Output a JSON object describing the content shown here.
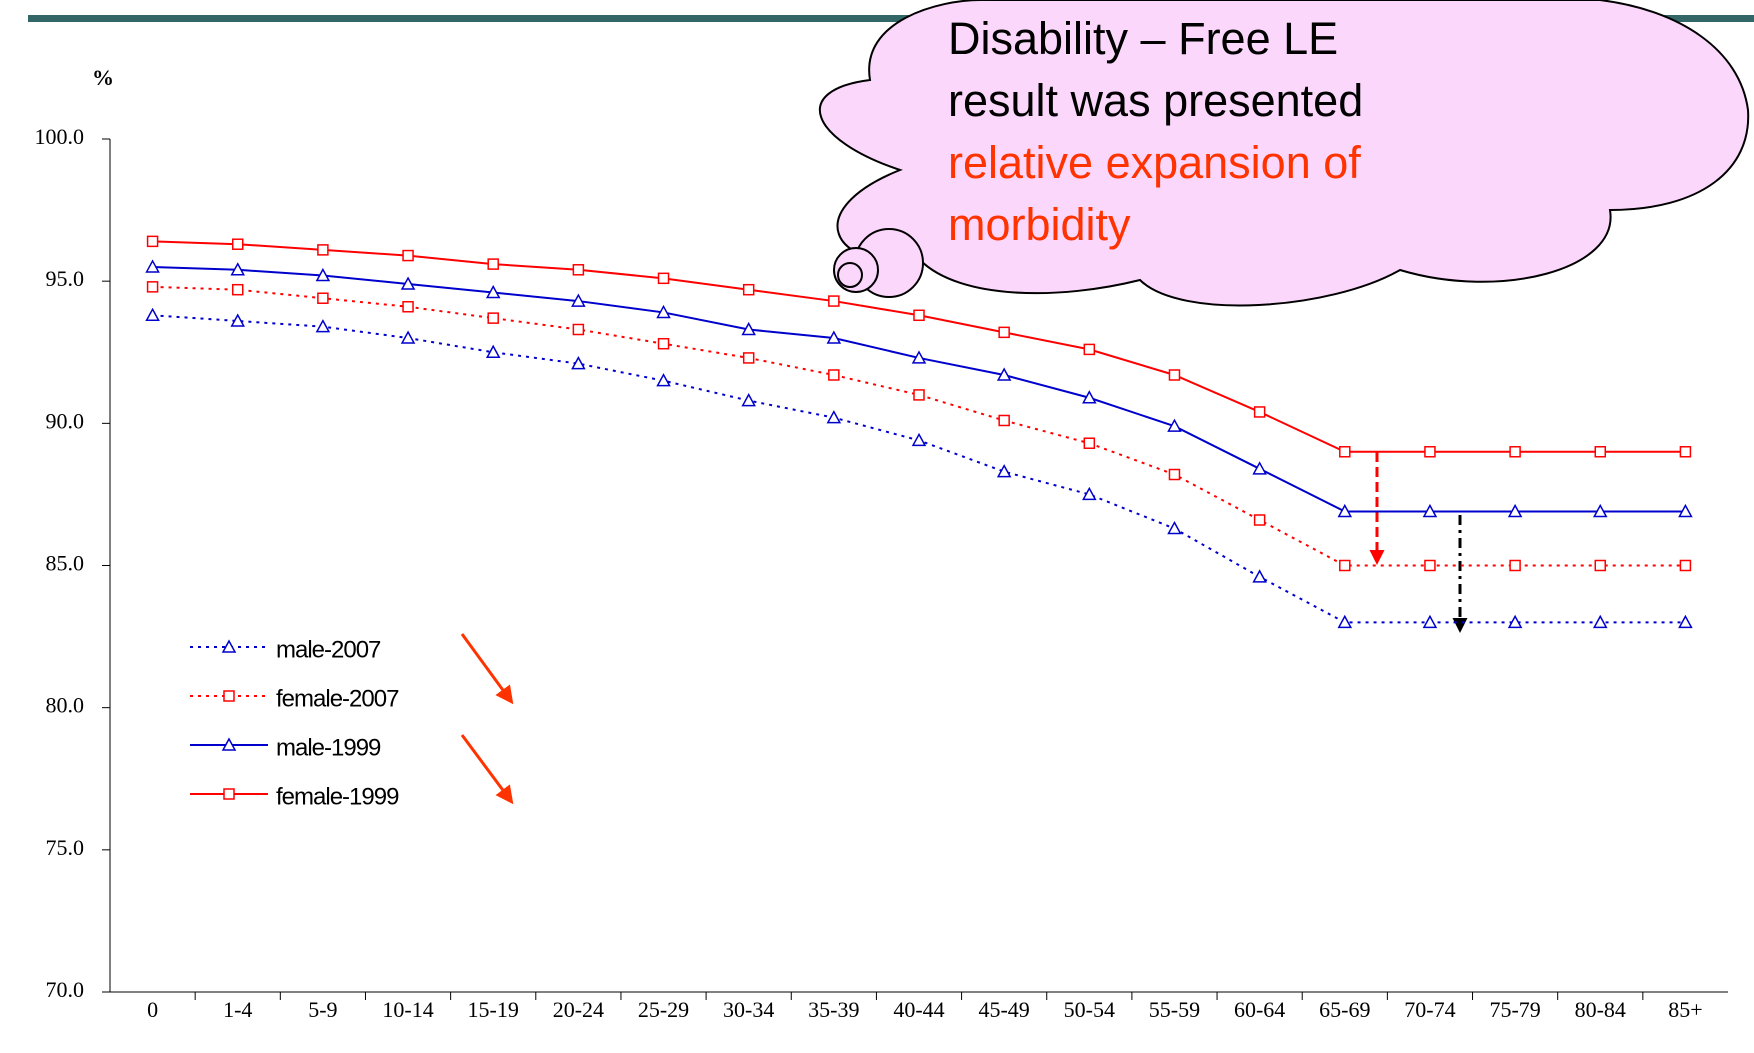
{
  "chart_data": {
    "type": "line",
    "ylabel": "%",
    "categories": [
      "0",
      "1-4",
      "5-9",
      "10-14",
      "15-19",
      "20-24",
      "25-29",
      "30-34",
      "35-39",
      "40-44",
      "45-49",
      "50-54",
      "55-59",
      "60-64",
      "65-69",
      "70-74",
      "75-79",
      "80-84",
      "85+"
    ],
    "series": [
      {
        "name": "male-2007",
        "color": "#0000cc",
        "marker": "triangle",
        "dashed": true,
        "values": [
          93.8,
          93.6,
          93.4,
          93.0,
          92.5,
          92.1,
          91.5,
          90.8,
          90.2,
          89.4,
          88.3,
          87.5,
          86.3,
          84.6,
          83.0,
          83.0,
          83.0,
          83.0,
          83.0
        ]
      },
      {
        "name": "female-2007",
        "color": "#ff0000",
        "marker": "square",
        "dashed": true,
        "values": [
          94.8,
          94.7,
          94.4,
          94.1,
          93.7,
          93.3,
          92.8,
          92.3,
          91.7,
          91.0,
          90.1,
          89.3,
          88.2,
          86.6,
          85.0,
          85.0,
          85.0,
          85.0,
          85.0
        ]
      },
      {
        "name": "male-1999",
        "color": "#0000cc",
        "marker": "triangle",
        "dashed": false,
        "values": [
          95.5,
          95.4,
          95.2,
          94.9,
          94.6,
          94.3,
          93.9,
          93.3,
          93.0,
          92.3,
          91.7,
          90.9,
          89.9,
          88.4,
          86.9,
          86.9,
          86.9,
          86.9,
          86.9
        ]
      },
      {
        "name": "female-1999",
        "color": "#ff0000",
        "marker": "square",
        "dashed": false,
        "values": [
          96.4,
          96.3,
          96.1,
          95.9,
          95.6,
          95.4,
          95.1,
          94.7,
          94.3,
          93.8,
          93.2,
          92.6,
          91.7,
          90.4,
          89.0,
          89.0,
          89.0,
          89.0,
          89.0
        ]
      }
    ],
    "ylim": [
      70,
      100
    ],
    "yticks": [
      {
        "value": 70,
        "label": "70.0"
      },
      {
        "value": 75,
        "label": "75.0"
      },
      {
        "value": 80,
        "label": "80.0"
      },
      {
        "value": 85,
        "label": "85.0"
      },
      {
        "value": 90,
        "label": "90.0"
      },
      {
        "value": 95,
        "label": "95.0"
      },
      {
        "value": 100,
        "label": "100.0"
      }
    ],
    "grid": false,
    "annotations": [
      {
        "text": "Disability – Free LE",
        "color": "#000000"
      },
      {
        "text": "result was presented",
        "color": "#000000"
      },
      {
        "text": "relative expansion of",
        "color": "#ff3300"
      },
      {
        "text": "morbidity",
        "color": "#ff3300"
      }
    ]
  }
}
